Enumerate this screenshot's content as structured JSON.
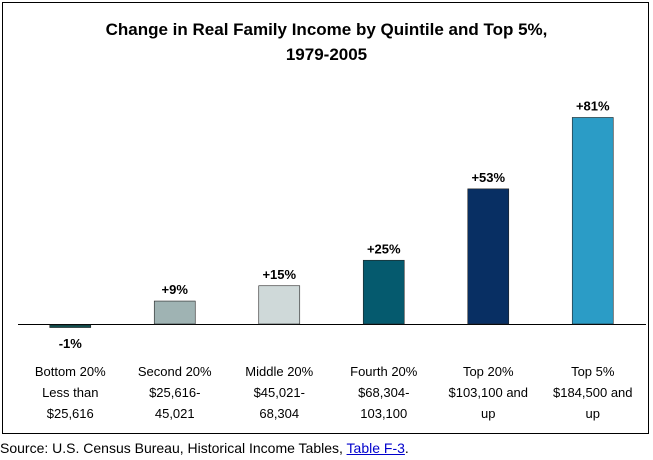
{
  "chart_data": {
    "type": "bar",
    "title_line1": "Change in Real Family Income by Quintile and Top 5%,",
    "title_line2": "1979-2005",
    "categories": [
      [
        "Bottom 20%",
        "Less than",
        "$25,616"
      ],
      [
        "Second 20%",
        "$25,616-",
        "45,021"
      ],
      [
        "Middle 20%",
        "$45,021-",
        "68,304"
      ],
      [
        "Fourth 20%",
        "$68,304-",
        "103,100"
      ],
      [
        "Top 20%",
        "$103,100 and",
        "up"
      ],
      [
        "Top 5%",
        "$184,500 and",
        "up"
      ]
    ],
    "values": [
      -1,
      9,
      15,
      25,
      53,
      81
    ],
    "data_labels": [
      "-1%",
      "+9%",
      "+15%",
      "+25%",
      "+53%",
      "+81%"
    ],
    "colors": [
      "#0f5050",
      "#9fb3b3",
      "#cfd9d9",
      "#055a6e",
      "#082f63",
      "#2b9cc6"
    ],
    "ylim": [
      -1,
      81
    ]
  },
  "source": {
    "prefix": "Source: U.S. Census Bureau, Historical Income Tables, ",
    "link": "Table F-3",
    "suffix": "."
  }
}
